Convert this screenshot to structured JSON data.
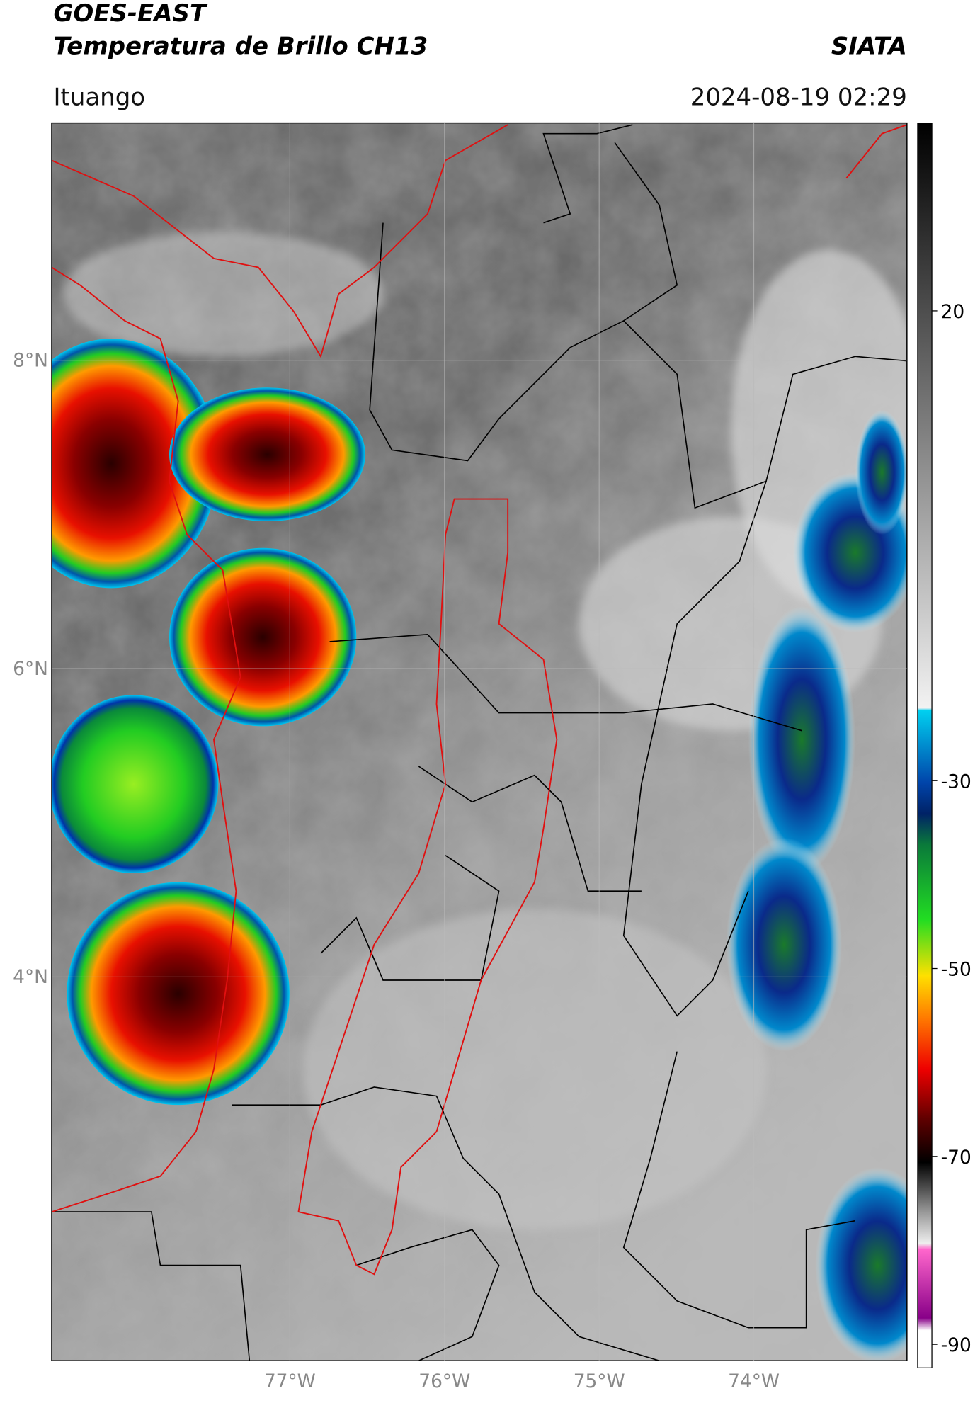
{
  "header": {
    "title_line1": "GOES-EAST",
    "title_line2": "Temperatura de Brillo CH13",
    "org": "SIATA",
    "location": "Ituango",
    "datetime": "2024-08-19 02:29"
  },
  "map": {
    "xlim": [
      -78.54,
      -73.01
    ],
    "ylim": [
      1.51,
      9.54
    ],
    "yticks": [
      {
        "value": 4,
        "label": "4°N"
      },
      {
        "value": 6,
        "label": "6°N"
      },
      {
        "value": 8,
        "label": "8°N"
      }
    ],
    "xticks": [
      {
        "value": -77,
        "label": "77°W"
      },
      {
        "value": -76,
        "label": "76°W"
      },
      {
        "value": -75,
        "label": "75°W"
      },
      {
        "value": -74,
        "label": "74°W"
      }
    ],
    "grid": true
  },
  "colorbar": {
    "ylim": [
      -92.5,
      40
    ],
    "yticks": [
      20,
      -30,
      -50,
      -70,
      -90
    ]
  }
}
